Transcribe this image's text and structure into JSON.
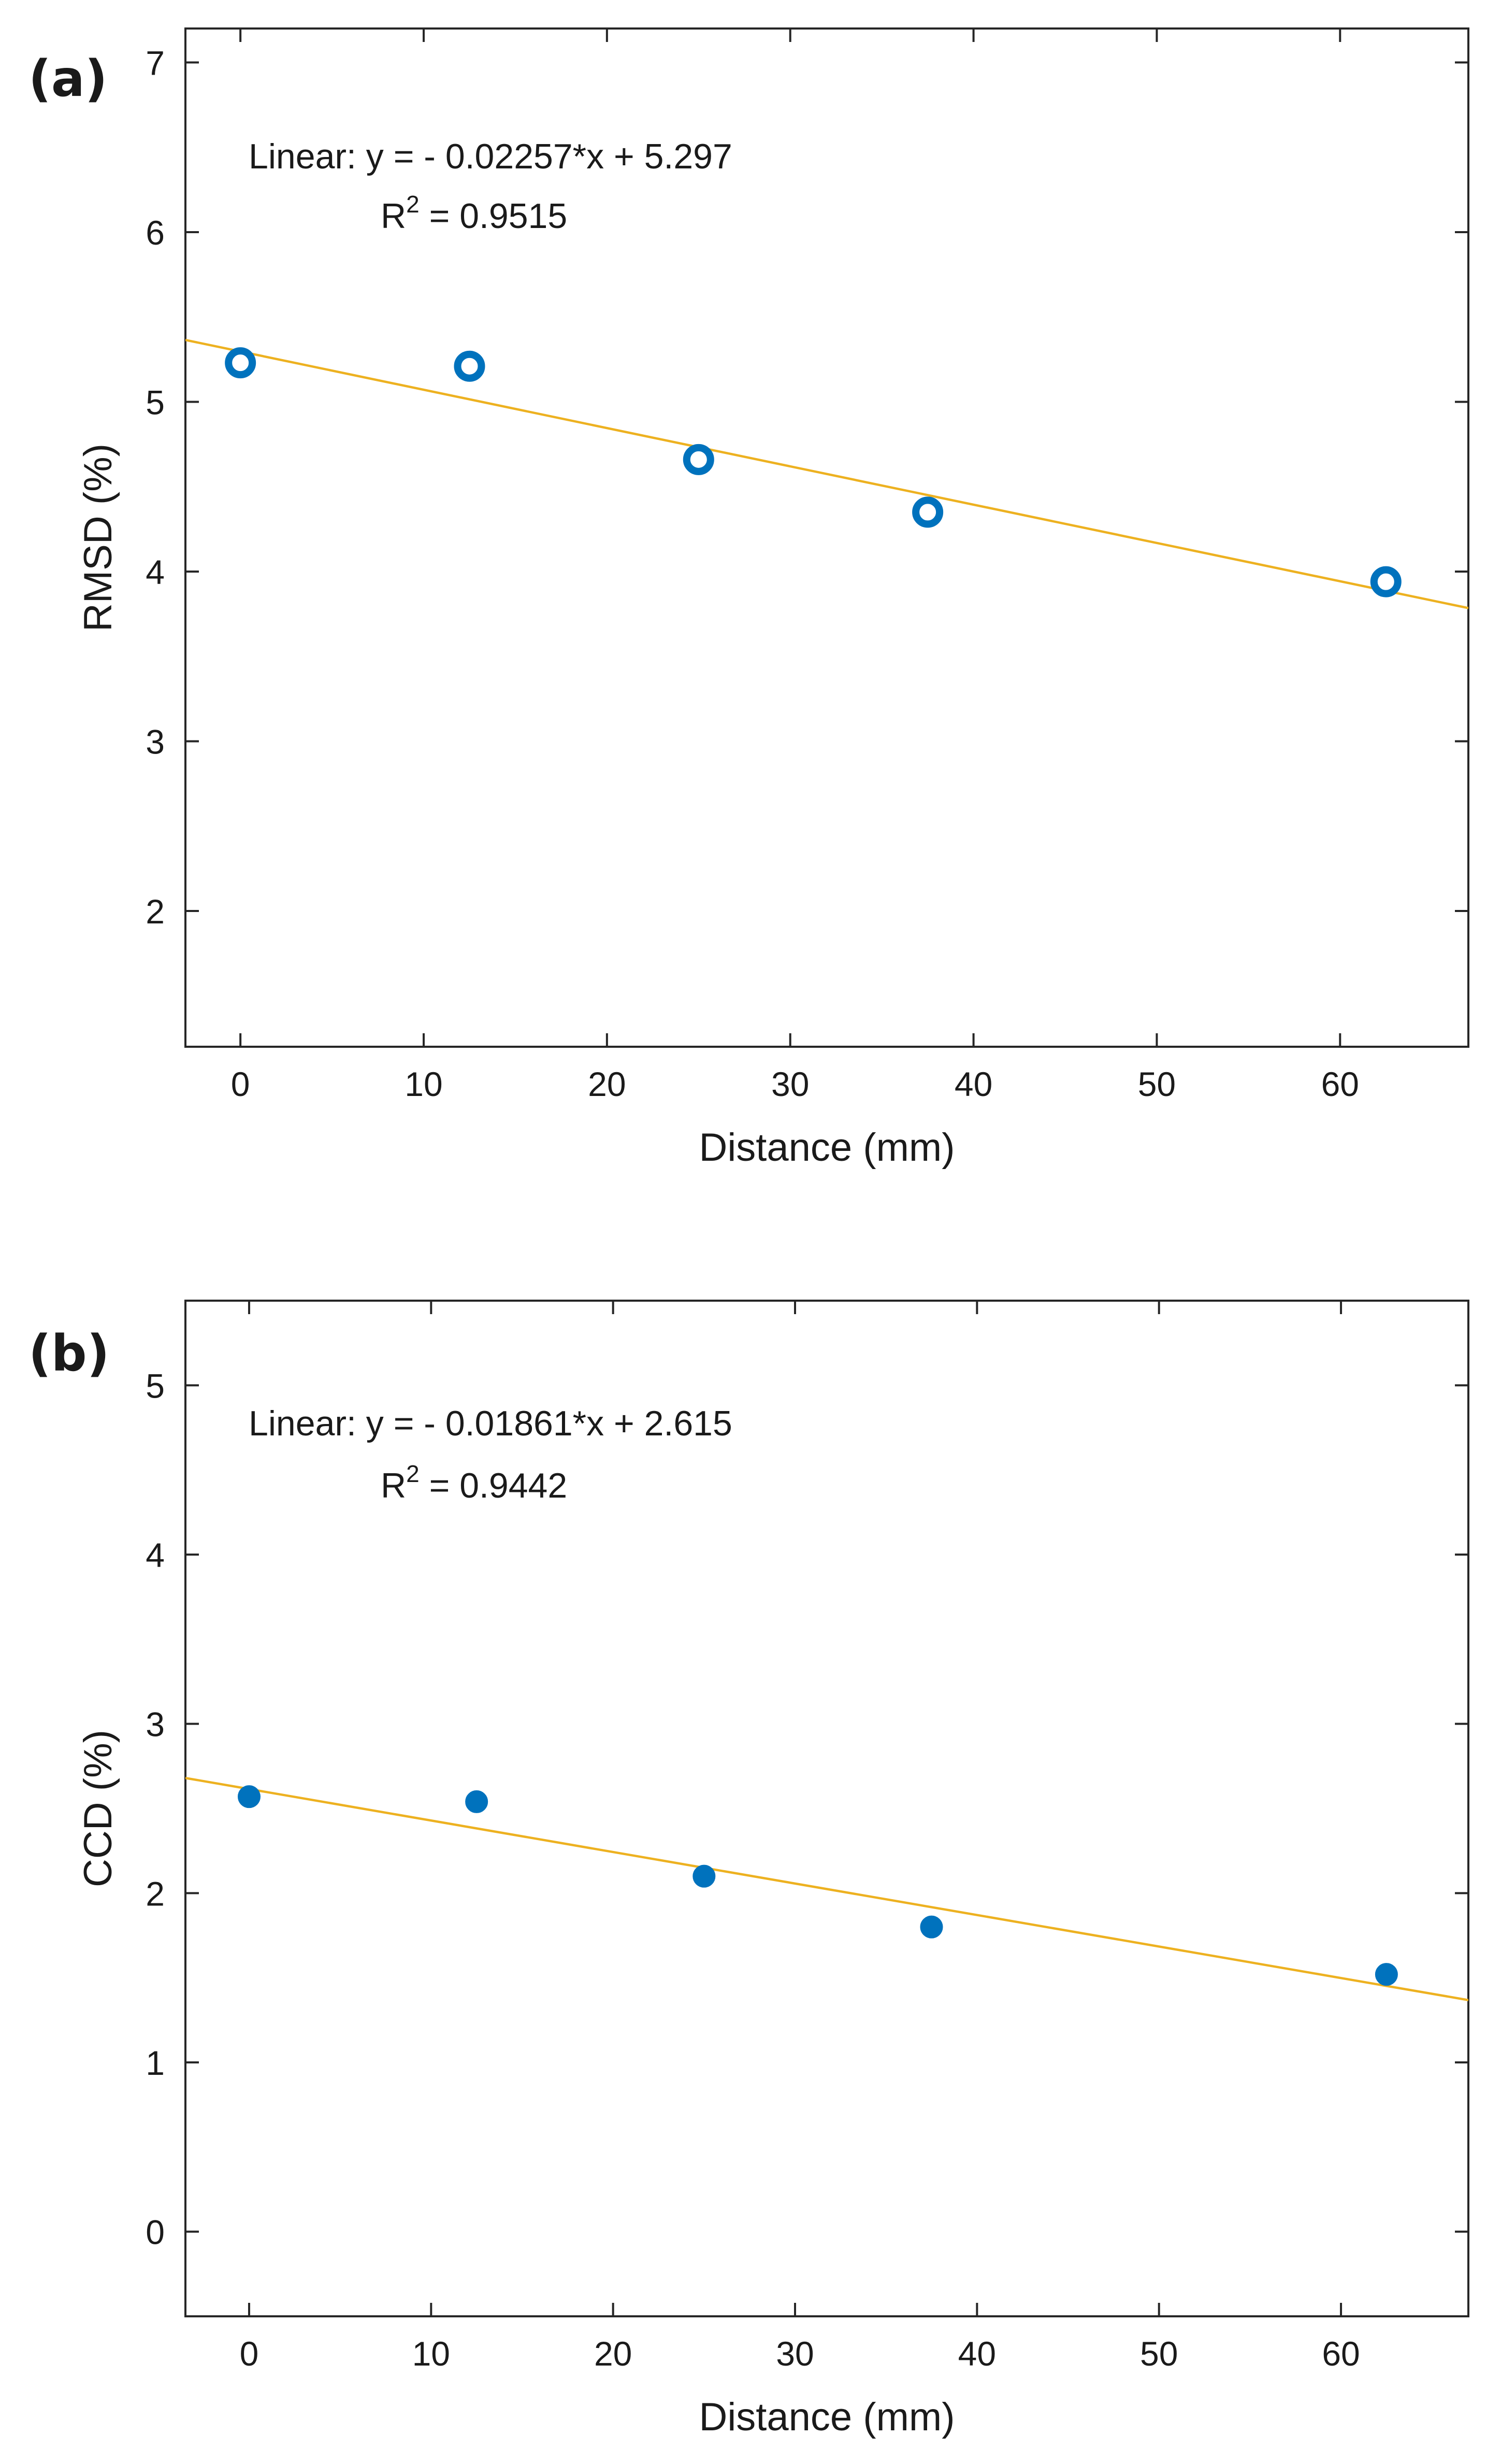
{
  "chart_data": [
    {
      "type": "scatter",
      "panel_label": "(a)",
      "marker": "open-circle",
      "xlabel": "Distance (mm)",
      "ylabel": "RMSD (%)",
      "xlim": [
        -3,
        67
      ],
      "ylim": [
        1.2,
        7.2
      ],
      "xticks": [
        0,
        10,
        20,
        30,
        40,
        50,
        60
      ],
      "yticks": [
        2,
        3,
        4,
        5,
        6,
        7
      ],
      "series": [
        {
          "name": "RMSD",
          "x": [
            0,
            12.5,
            25,
            37.5,
            62.5
          ],
          "y": [
            5.23,
            5.21,
            4.66,
            4.35,
            3.94
          ]
        }
      ],
      "fit": {
        "slope": -0.02257,
        "intercept": 5.297
      },
      "annotation": {
        "equation": "Linear:  y = - 0.02257*x + 5.297",
        "r2_prefix": "R",
        "r2_exp": "2",
        "r2_value": " = 0.9515"
      }
    },
    {
      "type": "scatter",
      "panel_label": "(b)",
      "marker": "filled-circle",
      "xlabel": "Distance (mm)",
      "ylabel": "CCD (%)",
      "xlim": [
        -3.5,
        67
      ],
      "ylim": [
        -0.5,
        5.5
      ],
      "xticks": [
        0,
        10,
        20,
        30,
        40,
        50,
        60
      ],
      "yticks": [
        0,
        1,
        2,
        3,
        4,
        5
      ],
      "series": [
        {
          "name": "CCD",
          "x": [
            0,
            12.5,
            25,
            37.5,
            62.5
          ],
          "y": [
            2.57,
            2.54,
            2.1,
            1.8,
            1.52
          ]
        }
      ],
      "fit": {
        "slope": -0.01861,
        "intercept": 2.615
      },
      "annotation": {
        "equation": "Linear:  y = - 0.01861*x + 2.615",
        "r2_prefix": "R",
        "r2_exp": "2",
        "r2_value": " = 0.9442"
      }
    }
  ],
  "colors": {
    "marker": "#0072BD",
    "fit": "#EDB120",
    "axis": "#262626"
  }
}
